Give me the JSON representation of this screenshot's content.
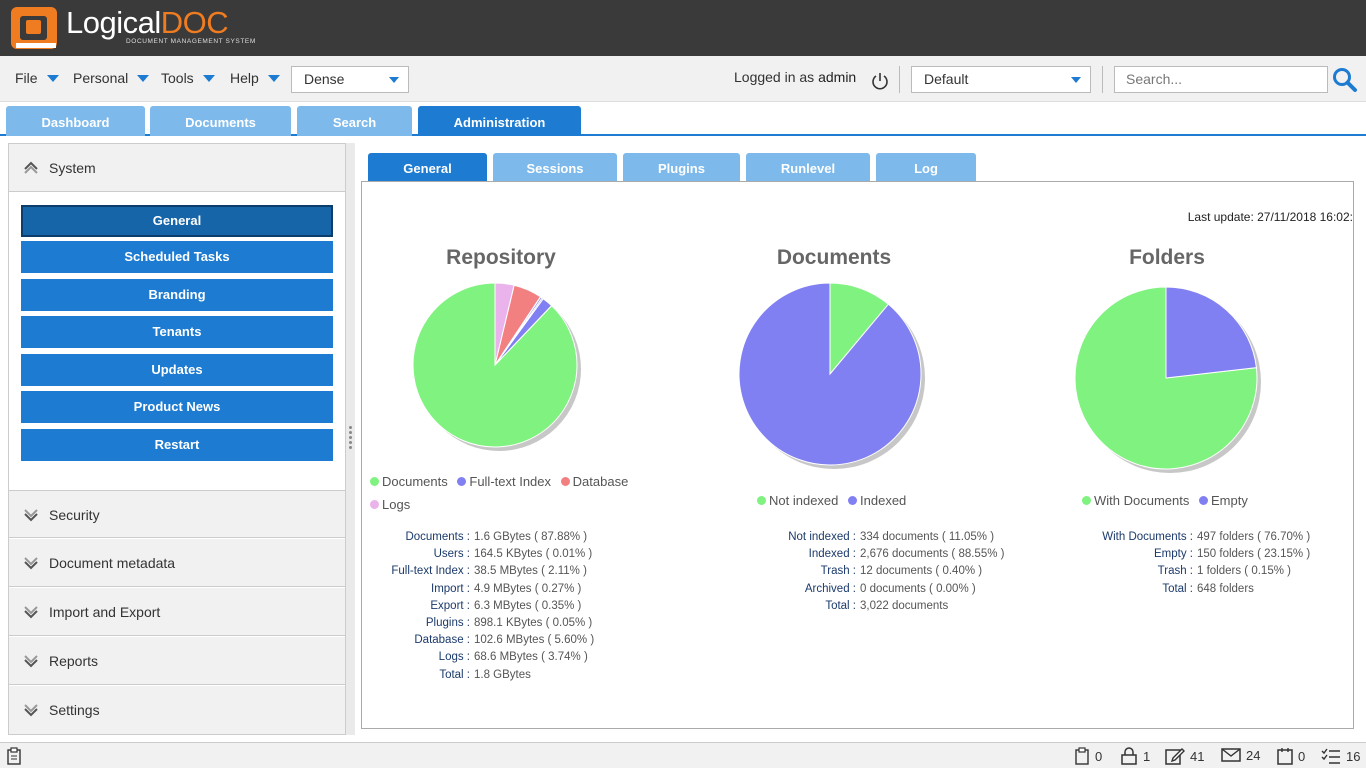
{
  "app": {
    "logo_main": "Logical",
    "logo_accent": "DOC",
    "logo_sub": "DOCUMENT MANAGEMENT SYSTEM"
  },
  "menu": {
    "file": "File",
    "personal": "Personal",
    "tools": "Tools",
    "help": "Help"
  },
  "density_select": "Dense",
  "session": {
    "logged_prefix": "Logged in as",
    "user": "admin"
  },
  "workspace_select": "Default",
  "search": {
    "placeholder": "Search..."
  },
  "main_tabs": [
    "Dashboard",
    "Documents",
    "Search",
    "Administration"
  ],
  "sidebar": {
    "system_header": "System",
    "system_items": [
      "General",
      "Scheduled Tasks",
      "Branding",
      "Tenants",
      "Updates",
      "Product News",
      "Restart"
    ],
    "sections": [
      "Security",
      "Document metadata",
      "Import and Export",
      "Reports",
      "Settings"
    ]
  },
  "sub_tabs": [
    "General",
    "Sessions",
    "Plugins",
    "Runlevel",
    "Log"
  ],
  "last_update": "Last update: 27/11/2018 16:02:",
  "colors": {
    "green": "#80f280",
    "blue": "#8080f2",
    "red": "#f28080",
    "pink": "#ebb3eb",
    "accent": "#1d7bd1"
  },
  "chart_data": [
    {
      "type": "pie",
      "title": "Repository",
      "slices": [
        {
          "label": "Documents",
          "value": 87.88
        },
        {
          "label": "Users",
          "value": 0.01
        },
        {
          "label": "Full-text Index",
          "value": 2.11
        },
        {
          "label": "Import",
          "value": 0.27
        },
        {
          "label": "Export",
          "value": 0.35
        },
        {
          "label": "Plugins",
          "value": 0.05
        },
        {
          "label": "Database",
          "value": 5.6
        },
        {
          "label": "Logs",
          "value": 3.74
        }
      ],
      "legend": [
        "Documents",
        "Full-text Index",
        "Database",
        "Logs"
      ],
      "stats": [
        {
          "label": "Documents :",
          "value": "1.6 GBytes ( 87.88% )"
        },
        {
          "label": "Users :",
          "value": "164.5 KBytes ( 0.01% )"
        },
        {
          "label": "Full-text Index :",
          "value": "38.5 MBytes ( 2.11% )"
        },
        {
          "label": "Import :",
          "value": "4.9 MBytes ( 0.27% )"
        },
        {
          "label": "Export :",
          "value": "6.3 MBytes ( 0.35% )"
        },
        {
          "label": "Plugins :",
          "value": "898.1 KBytes ( 0.05% )"
        },
        {
          "label": "Database :",
          "value": "102.6 MBytes ( 5.60% )"
        },
        {
          "label": "Logs :",
          "value": "68.6 MBytes ( 3.74% )"
        },
        {
          "label": "Total :",
          "value": "1.8 GBytes"
        }
      ]
    },
    {
      "type": "pie",
      "title": "Documents",
      "slices": [
        {
          "label": "Not indexed",
          "value": 11.05
        },
        {
          "label": "Indexed",
          "value": 88.55
        }
      ],
      "legend": [
        "Not indexed",
        "Indexed"
      ],
      "stats": [
        {
          "label": "Not indexed :",
          "value": "334 documents ( 11.05% )"
        },
        {
          "label": "Indexed :",
          "value": "2,676 documents ( 88.55% )"
        },
        {
          "label": "Trash :",
          "value": "12 documents ( 0.40% )"
        },
        {
          "label": "Archived :",
          "value": "0 documents ( 0.00% )"
        },
        {
          "label": "Total :",
          "value": "3,022 documents"
        }
      ]
    },
    {
      "type": "pie",
      "title": "Folders",
      "slices": [
        {
          "label": "With Documents",
          "value": 76.7
        },
        {
          "label": "Empty",
          "value": 23.15
        }
      ],
      "legend": [
        "With Documents",
        "Empty"
      ],
      "stats": [
        {
          "label": "With Documents :",
          "value": "497 folders ( 76.70% )"
        },
        {
          "label": "Empty :",
          "value": "150 folders ( 23.15% )"
        },
        {
          "label": "Trash :",
          "value": "1 folders ( 0.15% )"
        },
        {
          "label": "Total :",
          "value": "648 folders"
        }
      ]
    }
  ],
  "statusbar": {
    "clipboard": "0",
    "locked": "1",
    "checked_out": "41",
    "messages": "24",
    "events": "0",
    "tasks": "16"
  }
}
